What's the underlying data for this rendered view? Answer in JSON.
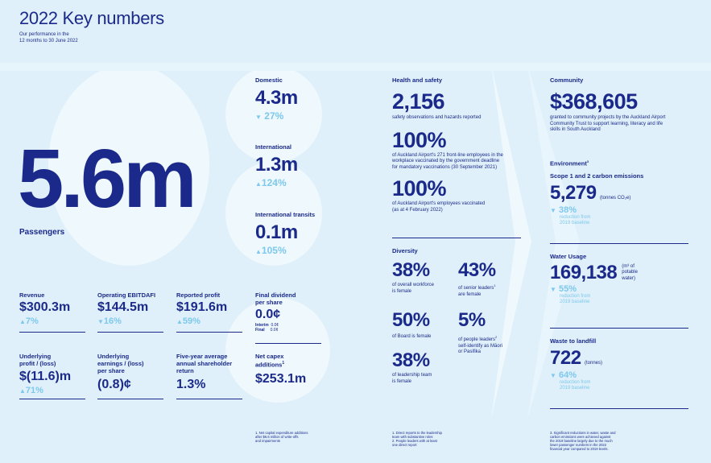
{
  "header": {
    "title": "2022 Key numbers",
    "subtitle_line1": "Our performance in the",
    "subtitle_line2": "12 months to 30 June 2022"
  },
  "passengers": {
    "value": "5.6m",
    "label": "Passengers"
  },
  "traffic": {
    "domestic": {
      "label": "Domestic",
      "value": "4.3m",
      "change": "27%",
      "direction": "down"
    },
    "international": {
      "label": "International",
      "value": "1.3m",
      "change": "124%",
      "direction": "up"
    },
    "transits": {
      "label": "International transits",
      "value": "0.1m",
      "change": "105%",
      "direction": "up"
    }
  },
  "financials": {
    "revenue": {
      "label": "Revenue",
      "value": "$300.3m",
      "change": "7%",
      "direction": "up"
    },
    "ebitdafi": {
      "label": "Operating EBITDAFI",
      "value": "$144.5m",
      "change": "16%",
      "direction": "down"
    },
    "reported_profit": {
      "label": "Reported profit",
      "value": "$191.6m",
      "change": "59%",
      "direction": "up"
    },
    "dividend": {
      "label_line1": "Final dividend",
      "label_line2": "per share",
      "value": "0.0¢",
      "interim_label": "Interim",
      "interim_value": "0.0¢",
      "final_label": "Final",
      "final_value": "0.0¢"
    },
    "underlying_profit": {
      "label_line1": "Underlying",
      "label_line2": "profit / (loss)",
      "value": "$(11.6)m",
      "change": "71%",
      "direction": "up"
    },
    "underlying_eps": {
      "label_line1": "Underlying",
      "label_line2": "earnings / (loss)",
      "label_line3": "per share",
      "value": "(0.8)¢"
    },
    "tsr": {
      "label_line1": "Five-year average",
      "label_line2": "annual shareholder",
      "label_line3": "return",
      "value": "1.3%"
    },
    "capex": {
      "label_line1": "Net capex",
      "label_line2": "additions",
      "sup": "1",
      "value": "$253.1m"
    }
  },
  "health_safety": {
    "heading": "Health and safety",
    "observations": {
      "value": "2,156",
      "desc": "safety observations and hazards reported"
    },
    "frontline": {
      "value": "100%",
      "desc_line1": "of Auckland Airport's 271 front-line employees in the",
      "desc_line2": "workplace vaccinated by the government deadline",
      "desc_line3": "for mandatory vaccinations (30 September 2021)"
    },
    "employees": {
      "value": "100%",
      "desc_line1": "of Auckland Airport's employees vaccinated",
      "desc_line2": "(as at 4 February 2022)"
    }
  },
  "diversity": {
    "heading": "Diversity",
    "workforce": {
      "value": "38%",
      "desc_line1": "of overall workforce",
      "desc_line2": "is female"
    },
    "senior": {
      "value": "43%",
      "desc_line1": "of senior leaders",
      "sup": "1",
      "desc_line2": "are female"
    },
    "board": {
      "value": "50%",
      "desc": "of Board is female"
    },
    "maori": {
      "value": "5%",
      "desc_line1": "of people leaders",
      "sup": "2",
      "desc_line2": "self-identify as Māori",
      "desc_line3": "or Pasifika"
    },
    "leadership": {
      "value": "38%",
      "desc_line1": "of leadership team",
      "desc_line2": "is female"
    }
  },
  "community": {
    "heading": "Community",
    "value": "$368,605",
    "desc_line1": "granted to community projects by the Auckland Airport",
    "desc_line2": "Community Trust to support learning, literacy and life",
    "desc_line3": "skills in South Auckland"
  },
  "environment": {
    "heading": "Environment",
    "sup": "3",
    "carbon": {
      "label": "Scope 1 and 2 carbon emissions",
      "value": "5,279",
      "unit": "(tonnes CO₂e)",
      "change": "38%",
      "sub_line1": "reduction from",
      "sub_line2": "2019 baseline"
    },
    "water": {
      "label": "Water Usage",
      "value": "169,138",
      "unit_line1": "(m³ of",
      "unit_line2": "potable",
      "unit_line3": "water)",
      "change": "55%",
      "sub_line1": "reduction from",
      "sub_line2": "2019 baseline"
    },
    "waste": {
      "label": "Waste to landfill",
      "value": "722",
      "unit": "(tonnes)",
      "change": "64%",
      "sub_line1": "reduction from",
      "sub_line2": "2019 baseline"
    }
  },
  "footnotes": {
    "col1": [
      "1.  Net capital expenditure additions",
      "     after $6.6 million of write-offs",
      "     and impairments"
    ],
    "col2": [
      "1.  Direct reports to the leadership",
      "     team with substantive roles",
      "2.  People leaders with at least",
      "     one direct report"
    ],
    "col3": [
      "3.  Significant reductions in water, waste and",
      "     carbon emissions were achieved against",
      "     the 2019 baseline largely due to the much",
      "     lower passenger numbers in the 2022",
      "     financial year compared to 2019 levels."
    ]
  },
  "colors": {
    "navy": "#1b2a8a",
    "accent": "#7dc8ec",
    "background": "#dff0fa"
  }
}
